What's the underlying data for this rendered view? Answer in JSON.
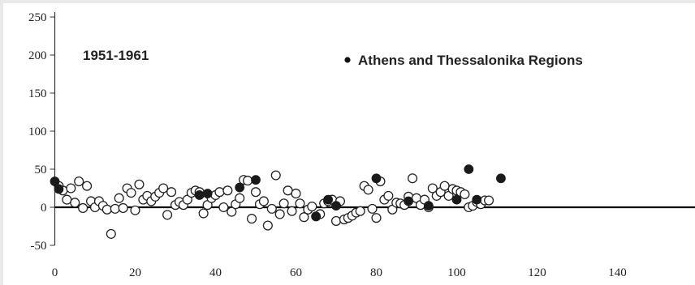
{
  "chart_data": {
    "type": "scatter",
    "title": "",
    "xlabel": "",
    "ylabel": "",
    "annotation": "1951-1961",
    "xlim": [
      0,
      160
    ],
    "ylim": [
      -50,
      250
    ],
    "x_ticks": [
      0,
      20,
      40,
      60,
      80,
      100,
      120,
      140
    ],
    "y_ticks": [
      -50,
      0,
      50,
      100,
      150,
      200,
      250
    ],
    "grid": false,
    "zero_line": true,
    "legend": {
      "placement": "top-right",
      "marker": "filled-circle",
      "label": "Athens and Thessalonika Regions"
    },
    "series": [
      {
        "name": "",
        "marker": "open-circle",
        "points": [
          [
            1,
            28
          ],
          [
            2,
            22
          ],
          [
            3,
            10
          ],
          [
            4,
            25
          ],
          [
            5,
            6
          ],
          [
            6,
            34
          ],
          [
            7,
            -1
          ],
          [
            8,
            28
          ],
          [
            9,
            8
          ],
          [
            10,
            0
          ],
          [
            11,
            8
          ],
          [
            12,
            2
          ],
          [
            13,
            -3
          ],
          [
            14,
            -35
          ],
          [
            15,
            -2
          ],
          [
            16,
            12
          ],
          [
            17,
            -1
          ],
          [
            18,
            25
          ],
          [
            19,
            19
          ],
          [
            20,
            -4
          ],
          [
            21,
            30
          ],
          [
            22,
            10
          ],
          [
            23,
            15
          ],
          [
            24,
            8
          ],
          [
            25,
            14
          ],
          [
            26,
            19
          ],
          [
            27,
            25
          ],
          [
            28,
            -10
          ],
          [
            29,
            20
          ],
          [
            30,
            3
          ],
          [
            31,
            7
          ],
          [
            32,
            3
          ],
          [
            33,
            10
          ],
          [
            34,
            19
          ],
          [
            35,
            22
          ],
          [
            36,
            20
          ],
          [
            37,
            -8
          ],
          [
            38,
            3
          ],
          [
            39,
            12
          ],
          [
            40,
            16
          ],
          [
            41,
            20
          ],
          [
            42,
            0
          ],
          [
            43,
            22
          ],
          [
            44,
            -6
          ],
          [
            45,
            4
          ],
          [
            46,
            12
          ],
          [
            47,
            36
          ],
          [
            48,
            35
          ],
          [
            49,
            -15
          ],
          [
            50,
            20
          ],
          [
            51,
            4
          ],
          [
            52,
            8
          ],
          [
            53,
            -24
          ],
          [
            54,
            -2
          ],
          [
            55,
            42
          ],
          [
            56,
            -9
          ],
          [
            57,
            5
          ],
          [
            58,
            22
          ],
          [
            59,
            -5
          ],
          [
            60,
            18
          ],
          [
            61,
            5
          ],
          [
            62,
            -13
          ],
          [
            63,
            -3
          ],
          [
            64,
            1
          ],
          [
            65,
            -12
          ],
          [
            66,
            -9
          ],
          [
            67,
            5
          ],
          [
            68,
            8
          ],
          [
            69,
            10
          ],
          [
            70,
            -18
          ],
          [
            71,
            8
          ],
          [
            72,
            -16
          ],
          [
            73,
            -14
          ],
          [
            74,
            -11
          ],
          [
            75,
            -7
          ],
          [
            76,
            -5
          ],
          [
            77,
            28
          ],
          [
            78,
            23
          ],
          [
            79,
            -2
          ],
          [
            80,
            -14
          ],
          [
            81,
            34
          ],
          [
            82,
            10
          ],
          [
            83,
            15
          ],
          [
            84,
            -3
          ],
          [
            85,
            6
          ],
          [
            86,
            5
          ],
          [
            87,
            3
          ],
          [
            88,
            14
          ],
          [
            89,
            38
          ],
          [
            90,
            12
          ],
          [
            91,
            3
          ],
          [
            92,
            10
          ],
          [
            93,
            0
          ],
          [
            94,
            25
          ],
          [
            95,
            15
          ],
          [
            96,
            20
          ],
          [
            97,
            28
          ],
          [
            98,
            15
          ],
          [
            99,
            24
          ],
          [
            100,
            22
          ],
          [
            101,
            20
          ],
          [
            102,
            17
          ],
          [
            103,
            0
          ],
          [
            104,
            2
          ],
          [
            105,
            7
          ],
          [
            106,
            4
          ],
          [
            107,
            9
          ],
          [
            108,
            9
          ]
        ]
      },
      {
        "name": "Athens and Thessalonika Regions",
        "marker": "filled-circle",
        "points": [
          [
            0,
            34
          ],
          [
            1,
            24
          ],
          [
            36,
            16
          ],
          [
            38,
            18
          ],
          [
            46,
            26
          ],
          [
            50,
            36
          ],
          [
            65,
            -12
          ],
          [
            68,
            10
          ],
          [
            70,
            2
          ],
          [
            80,
            38
          ],
          [
            88,
            8
          ],
          [
            93,
            2
          ],
          [
            100,
            10
          ],
          [
            103,
            50
          ],
          [
            105,
            10
          ],
          [
            111,
            38
          ]
        ]
      }
    ]
  }
}
